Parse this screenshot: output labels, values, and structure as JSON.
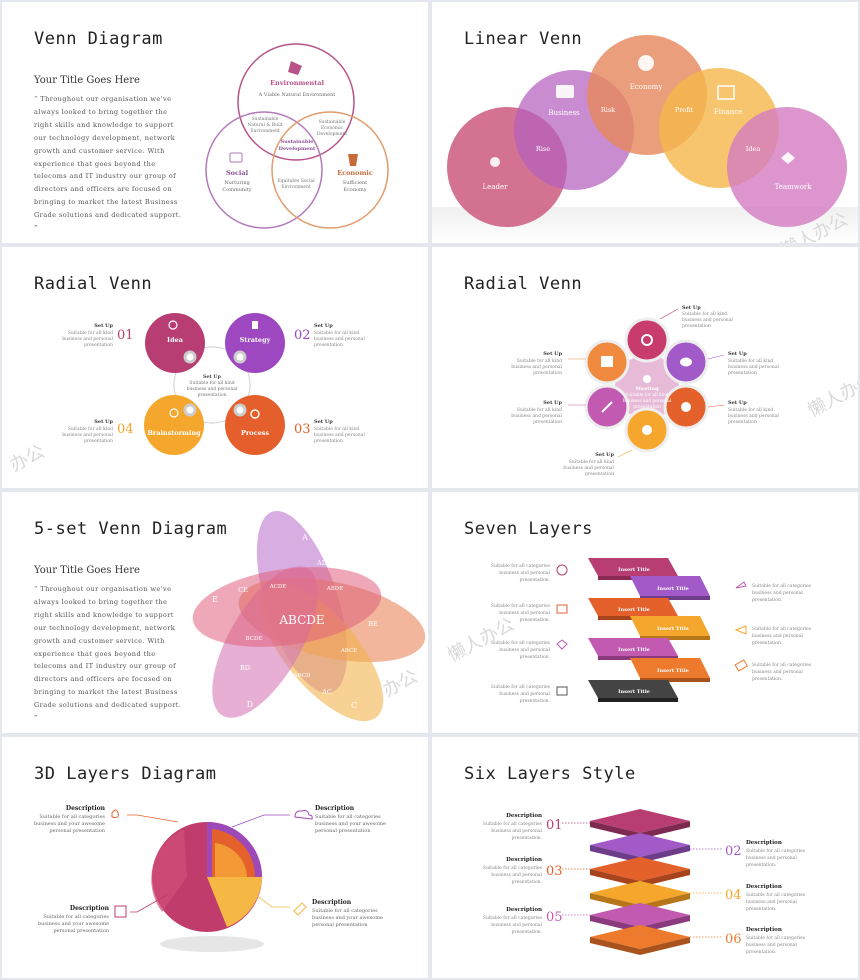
{
  "panels": {
    "p1": {
      "title": "Venn Diagram",
      "subtitle": "Your Title Goes Here",
      "body": "“ Throughout our organisation we've always looked to bring together the right skills and knowledge to support our technology development, network growth and customer service. With experience that goes beyond the telecoms and IT industry our group of directors and officers are focused on bringing to market the latest Business Grade solutions and dedicated support. ”",
      "environmental": "Environmental",
      "environmental_sub": "A Viable Natural Environment",
      "social": "Social",
      "social_sub1": "Nurturing",
      "social_sub2": "Community",
      "economic": "Economic",
      "economic_sub1": "Sufficient",
      "economic_sub2": "Economy",
      "sust_nb1": "Sustainable",
      "sust_nb2": "Natural & Built",
      "sust_nb3": "Environment",
      "sust_ed1": "Sustainable",
      "sust_ed2": "Economic",
      "sust_ed3": "Development",
      "center1": "Sustainable",
      "center2": "Development",
      "equit1": "Equitable Social",
      "equit2": "Environment"
    },
    "p2": {
      "title": "Linear Venn",
      "circles": [
        "Leader",
        "Business",
        "Economy",
        "Finance",
        "Teamwork"
      ],
      "overlaps": [
        "Rise",
        "Risk",
        "Profit",
        "Idea"
      ]
    },
    "p3": {
      "title": "Radial Venn",
      "circles": [
        "Idea",
        "Strategy",
        "Brainstorming",
        "Process"
      ],
      "numbers": [
        "01",
        "02",
        "04",
        "03"
      ],
      "item_title": "Set Up",
      "item_l1": "Suitable for all kind",
      "item_l2": "business and personal",
      "item_l3": "presentation",
      "center1": "Set Up",
      "center2": "Suitable for all kind",
      "center3": "business and personal",
      "center4": "presentation"
    },
    "p4": {
      "title": "Radial Venn",
      "center_title": "Meeting",
      "center1": "Suitable for all kind",
      "center2": "business and personal",
      "center3": "presentation",
      "item_title": "Set Up",
      "item_l1": "Suitable for all kind",
      "item_l2": "business and personal",
      "item_l3": "presentation"
    },
    "p5": {
      "title": "5-set Venn Diagram",
      "subtitle": "Your Title Goes Here",
      "body": "“ Throughout our organisation we've always looked to bring together the right skills and knowledge to support our technology development, network growth and customer service. With experience that goes beyond the telecoms and IT industry our group of directors and officers are focused on bringing to market the latest Business Grade solutions and dedicated support. ”",
      "center": "ABCDE",
      "labels": [
        "A",
        "B",
        "C",
        "D",
        "E",
        "AD",
        "CE",
        "ACDE",
        "ABDE",
        "BE",
        "BCDE",
        "ABCE",
        "BD",
        "ABCD",
        "AC"
      ]
    },
    "p6": {
      "title": "Seven Layers",
      "layer_label": "Insert Title",
      "desc_l1": "Suitable for all categories",
      "desc_l2": "business and personal",
      "desc_l3": "presentation."
    },
    "p7": {
      "title": "3D Layers Diagram",
      "desc_title": "Description",
      "desc_l1": "Suitable for all categories",
      "desc_l2": "business and your awesome",
      "desc_l3": "personal presentation"
    },
    "p8": {
      "title": "Six Layers Style",
      "numbers_left": [
        "01",
        "03",
        "05"
      ],
      "numbers_right": [
        "02",
        "04",
        "06"
      ],
      "desc_title": "Description",
      "desc_l1": "Suitable for all categories",
      "desc_l2": "business and personal",
      "desc_l3": "presentation."
    }
  },
  "watermarks": [
    "懒人办公",
    "办公",
    "懒人办公",
    "办公",
    "懒人办公"
  ]
}
